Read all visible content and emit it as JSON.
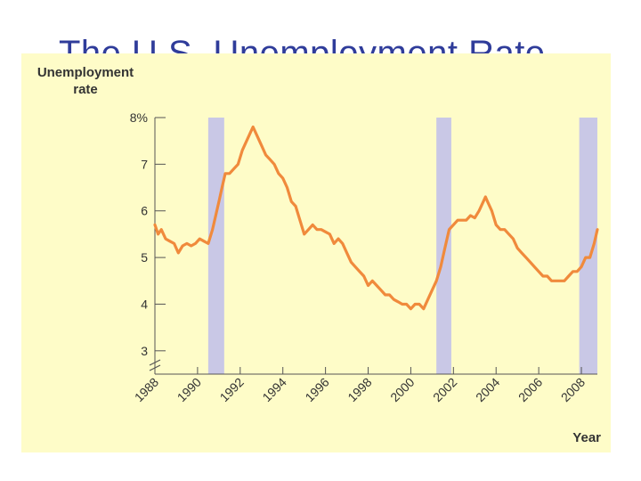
{
  "slide": {
    "title": "The U.S. Unemployment Rate"
  },
  "chart_data": {
    "type": "line",
    "ylabel": [
      "Unemployment",
      "rate"
    ],
    "xlabel": "Year",
    "ylim": [
      2.5,
      8
    ],
    "xlim": [
      1988,
      2008.75
    ],
    "y_ticks": [
      "3",
      "4",
      "5",
      "6",
      "7",
      "8%"
    ],
    "y_tick_values": [
      3,
      4,
      5,
      6,
      7,
      8
    ],
    "x_ticks": [
      "1988",
      "1990",
      "1992",
      "1994",
      "1996",
      "1998",
      "2000",
      "2002",
      "2004",
      "2006",
      "2008"
    ],
    "x_tick_values": [
      1988,
      1990,
      1992,
      1994,
      1996,
      1998,
      2000,
      2002,
      2004,
      2006,
      2008
    ],
    "axis_break": true,
    "grid": false,
    "recessions": [
      {
        "start": 1990.5,
        "end": 1991.25
      },
      {
        "start": 2001.2,
        "end": 2001.9
      },
      {
        "start": 2007.9,
        "end": 2008.75
      }
    ],
    "series": [
      {
        "line_color": "#f08a3c",
        "x": [
          1988.0,
          1988.15,
          1988.3,
          1988.5,
          1988.7,
          1988.9,
          1989.1,
          1989.3,
          1989.5,
          1989.7,
          1989.9,
          1990.1,
          1990.3,
          1990.5,
          1990.7,
          1990.85,
          1991.0,
          1991.15,
          1991.3,
          1991.5,
          1991.7,
          1991.9,
          1992.1,
          1992.3,
          1992.5,
          1992.6,
          1992.8,
          1993.0,
          1993.2,
          1993.4,
          1993.6,
          1993.8,
          1994.0,
          1994.2,
          1994.4,
          1994.6,
          1994.8,
          1995.0,
          1995.2,
          1995.4,
          1995.6,
          1995.8,
          1996.0,
          1996.2,
          1996.4,
          1996.6,
          1996.8,
          1997.0,
          1997.2,
          1997.4,
          1997.6,
          1997.8,
          1998.0,
          1998.2,
          1998.4,
          1998.6,
          1998.8,
          1999.0,
          1999.2,
          1999.4,
          1999.6,
          1999.8,
          2000.0,
          2000.2,
          2000.4,
          2000.6,
          2000.8,
          2001.0,
          2001.2,
          2001.4,
          2001.6,
          2001.8,
          2002.0,
          2002.2,
          2002.4,
          2002.6,
          2002.8,
          2003.0,
          2003.2,
          2003.4,
          2003.5,
          2003.6,
          2003.8,
          2004.0,
          2004.2,
          2004.4,
          2004.6,
          2004.8,
          2005.0,
          2005.2,
          2005.4,
          2005.6,
          2005.8,
          2006.0,
          2006.2,
          2006.4,
          2006.6,
          2006.8,
          2007.0,
          2007.2,
          2007.4,
          2007.6,
          2007.8,
          2008.0,
          2008.2,
          2008.4,
          2008.6,
          2008.75
        ],
        "y": [
          5.7,
          5.5,
          5.6,
          5.4,
          5.35,
          5.3,
          5.1,
          5.25,
          5.3,
          5.25,
          5.3,
          5.4,
          5.35,
          5.3,
          5.6,
          5.9,
          6.2,
          6.5,
          6.8,
          6.8,
          6.9,
          7.0,
          7.3,
          7.5,
          7.7,
          7.8,
          7.6,
          7.4,
          7.2,
          7.1,
          7.0,
          6.8,
          6.7,
          6.5,
          6.2,
          6.1,
          5.8,
          5.5,
          5.6,
          5.7,
          5.6,
          5.6,
          5.55,
          5.5,
          5.3,
          5.4,
          5.3,
          5.1,
          4.9,
          4.8,
          4.7,
          4.6,
          4.4,
          4.5,
          4.4,
          4.3,
          4.2,
          4.2,
          4.1,
          4.05,
          4.0,
          4.0,
          3.9,
          4.0,
          4.0,
          3.9,
          4.1,
          4.3,
          4.5,
          4.8,
          5.2,
          5.6,
          5.7,
          5.8,
          5.8,
          5.8,
          5.9,
          5.85,
          6.0,
          6.2,
          6.3,
          6.2,
          6.0,
          5.7,
          5.6,
          5.6,
          5.5,
          5.4,
          5.2,
          5.1,
          5.0,
          4.9,
          4.8,
          4.7,
          4.6,
          4.6,
          4.5,
          4.5,
          4.5,
          4.5,
          4.6,
          4.7,
          4.7,
          4.8,
          5.0,
          5.0,
          5.3,
          5.6
        ]
      }
    ]
  }
}
